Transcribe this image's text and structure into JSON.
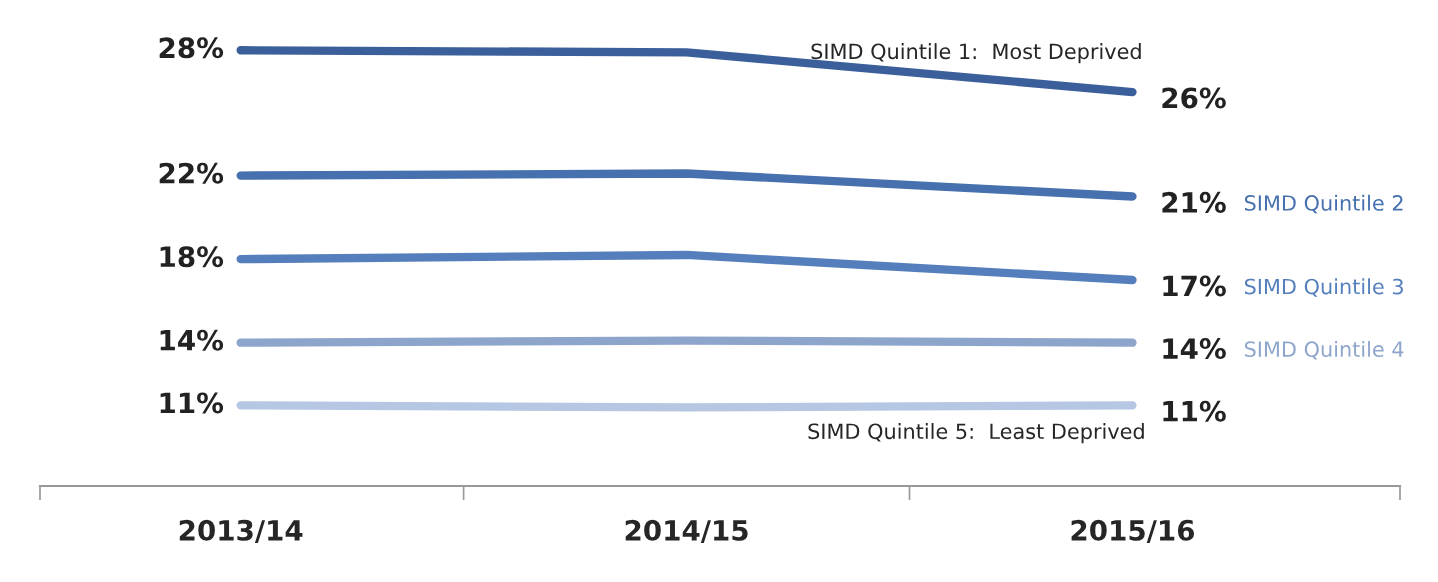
{
  "chart_data": {
    "type": "line",
    "categories": [
      "2013/14",
      "2014/15",
      "2015/16"
    ],
    "series": [
      {
        "name": "SIMD Quintile 1:  Most Deprived",
        "color": "#3b5f9b",
        "values": [
          28,
          27.9,
          26
        ],
        "value_labels": [
          "28%",
          null,
          "26%"
        ]
      },
      {
        "name": "SIMD Quintile 2",
        "color": "#4670ae",
        "values": [
          22,
          22.1,
          21
        ],
        "value_labels": [
          "22%",
          null,
          "21%"
        ]
      },
      {
        "name": "SIMD Quintile 3",
        "color": "#557fbc",
        "values": [
          18,
          18.2,
          17
        ],
        "value_labels": [
          "18%",
          null,
          "17%"
        ]
      },
      {
        "name": "SIMD Quintile 4",
        "color": "#8ea5cb",
        "values": [
          14,
          14.1,
          14
        ],
        "value_labels": [
          "14%",
          null,
          "14%"
        ]
      },
      {
        "name": "SIMD Quintile 5:  Least Deprived",
        "color": "#b5c7e2",
        "values": [
          11,
          10.9,
          11
        ],
        "value_labels": [
          "11%",
          null,
          "11%"
        ]
      }
    ],
    "marker": "none",
    "line_style": "solid",
    "grid": false,
    "legend": false,
    "tick_labels": "x"
  }
}
